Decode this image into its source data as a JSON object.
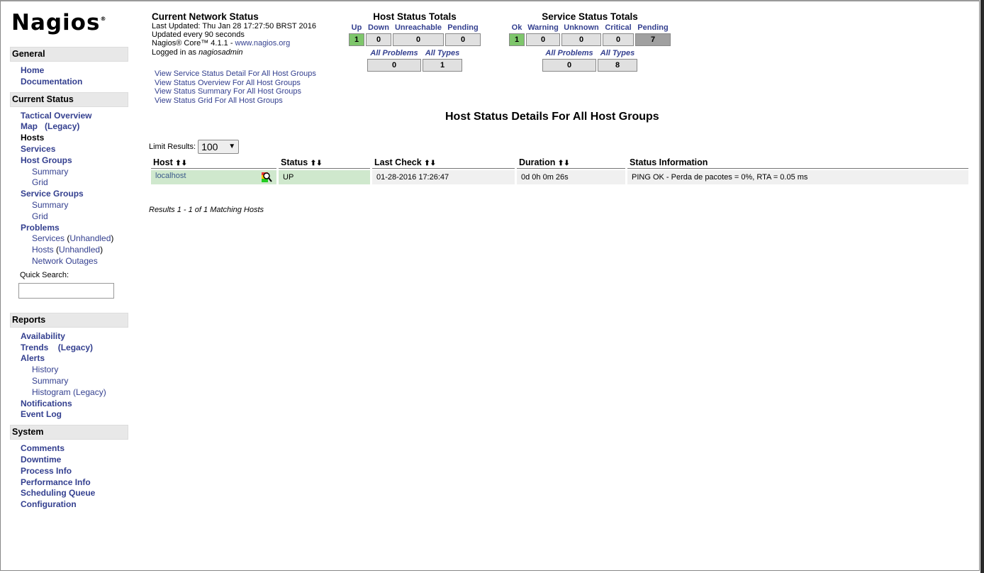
{
  "logo": "Nagios",
  "sidebar": {
    "general": {
      "title": "General",
      "items": [
        "Home",
        "Documentation"
      ]
    },
    "current_status": {
      "title": "Current Status",
      "tactical": "Tactical Overview",
      "map": "Map",
      "map_legacy": "(Legacy)",
      "hosts": "Hosts",
      "services": "Services",
      "host_groups": "Host Groups",
      "hg_summary": "Summary",
      "hg_grid": "Grid",
      "service_groups": "Service Groups",
      "sg_summary": "Summary",
      "sg_grid": "Grid",
      "problems": "Problems",
      "p_services": "Services",
      "p_services_unh": "Unhandled",
      "p_hosts": "Hosts",
      "p_hosts_unh": "Unhandled",
      "p_outages": "Network Outages",
      "quick_search": "Quick Search:"
    },
    "reports": {
      "title": "Reports",
      "availability": "Availability",
      "trends": "Trends",
      "trends_legacy": "(Legacy)",
      "alerts": "Alerts",
      "history": "History",
      "summary": "Summary",
      "histogram": "Histogram (Legacy)",
      "notifications": "Notifications",
      "event_log": "Event Log"
    },
    "system": {
      "title": "System",
      "items": [
        "Comments",
        "Downtime",
        "Process Info",
        "Performance Info",
        "Scheduling Queue",
        "Configuration"
      ]
    }
  },
  "info": {
    "title": "Current Network Status",
    "updated": "Last Updated: Thu Jan 28 17:27:50 BRST 2016",
    "interval": "Updated every 90 seconds",
    "core": "Nagios® Core™ 4.1.1 - ",
    "core_link": "www.nagios.org",
    "logged": "Logged in as ",
    "user": "nagiosadmin",
    "links": [
      "View Service Status Detail For All Host Groups",
      "View Status Overview For All Host Groups",
      "View Status Summary For All Host Groups",
      "View Status Grid For All Host Groups"
    ]
  },
  "host_totals": {
    "title": "Host Status Totals",
    "labels": [
      "Up",
      "Down",
      "Unreachable",
      "Pending"
    ],
    "values": [
      "1",
      "0",
      "0",
      "0"
    ],
    "labels2": [
      "All Problems",
      "All Types"
    ],
    "values2": [
      "0",
      "1"
    ]
  },
  "service_totals": {
    "title": "Service Status Totals",
    "labels": [
      "Ok",
      "Warning",
      "Unknown",
      "Critical",
      "Pending"
    ],
    "values": [
      "1",
      "0",
      "0",
      "0",
      "7"
    ],
    "labels2": [
      "All Problems",
      "All Types"
    ],
    "values2": [
      "0",
      "8"
    ]
  },
  "colors": {
    "ok": "#7ec66b",
    "pending": "#a0a0a0",
    "row_up": "#cfe8cd",
    "link": "#333f8f"
  },
  "main": {
    "title": "Host Status Details For All Host Groups",
    "limit_label": "Limit Results:",
    "limit_value": "100",
    "columns": [
      "Host",
      "Status",
      "Last Check",
      "Duration",
      "Status Information"
    ],
    "rows": [
      {
        "host": "localhost",
        "status": "UP",
        "last_check": "01-28-2016 17:26:47",
        "duration": "0d 0h 0m 26s",
        "info": "PING OK - Perda de pacotes = 0%, RTA = 0.05 ms"
      }
    ],
    "results": "Results 1 - 1 of 1 Matching Hosts"
  }
}
